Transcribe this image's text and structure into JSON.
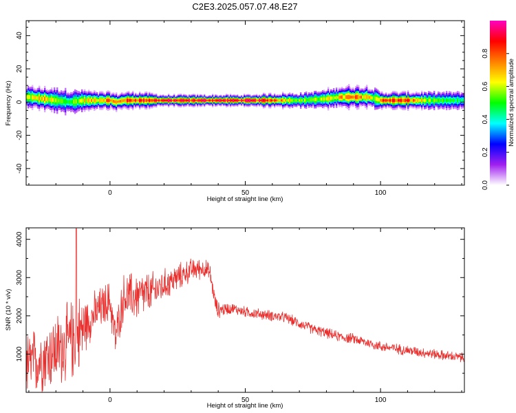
{
  "title": "C2E3.2025.057.07.48.E27",
  "chart_data": [
    {
      "type": "heatmap",
      "xlabel": "Height of straight line (km)",
      "ylabel": "Frequency (Hz)",
      "xlim": [
        -31,
        131
      ],
      "ylim": [
        -50,
        49
      ],
      "xticks": [
        0,
        50,
        100
      ],
      "yticks": [
        -40,
        -20,
        0,
        20,
        40
      ],
      "grid": false,
      "colorbar": {
        "label": "Normalized spectral amplitude",
        "range": [
          0,
          1
        ],
        "ticks": [
          "0.0",
          "0.2",
          "0.4",
          "0.6",
          "0.8"
        ],
        "colormap": [
          "#ffffff",
          "#a020f0",
          "#0000ff",
          "#00ffff",
          "#00ff00",
          "#ffff00",
          "#ff8000",
          "#ff0000",
          "#ff00c0"
        ]
      },
      "ridge": {
        "x": [
          -30,
          -25,
          -20,
          -15,
          -10,
          -5,
          0,
          2,
          5,
          10,
          20,
          30,
          40,
          50,
          60,
          70,
          80,
          85,
          90,
          95,
          98,
          100,
          105,
          110,
          120,
          130
        ],
        "freq": [
          3,
          2,
          1,
          0,
          1,
          1,
          1,
          0,
          1,
          1,
          1,
          1,
          1,
          1,
          1,
          1,
          2,
          3,
          3,
          3,
          2,
          1,
          1,
          1,
          1,
          1
        ],
        "amplitude": [
          0.6,
          0.7,
          0.55,
          0.5,
          0.65,
          0.7,
          0.8,
          0.7,
          0.8,
          0.85,
          0.9,
          0.9,
          0.92,
          0.9,
          0.85,
          0.55,
          0.6,
          0.7,
          0.75,
          0.7,
          0.6,
          0.8,
          0.85,
          0.8,
          0.5,
          0.45
        ],
        "halfwidth_hz": [
          4,
          4,
          5,
          5,
          4,
          3,
          3,
          3,
          3,
          3,
          2,
          2,
          2,
          2,
          2.5,
          3,
          3.5,
          4,
          4,
          4,
          4,
          3,
          3,
          3,
          3.5,
          3.5
        ]
      }
    },
    {
      "type": "line",
      "xlabel": "Height of straight line (km)",
      "ylabel": "SNR (10 * v/v)",
      "xlim": [
        -31,
        131
      ],
      "ylim": [
        0,
        4300
      ],
      "xticks": [
        0,
        50,
        100
      ],
      "yticks": [
        1000,
        2000,
        3000,
        4000
      ],
      "grid": false,
      "color": "#e8312f",
      "trend": {
        "x": [
          -31,
          -25,
          -20,
          -15,
          -12,
          -10,
          -5,
          0,
          2,
          5,
          10,
          15,
          20,
          25,
          30,
          35,
          37,
          39,
          40,
          45,
          50,
          55,
          60,
          65,
          70,
          75,
          80,
          85,
          90,
          95,
          100,
          105,
          110,
          115,
          120,
          125,
          131
        ],
        "y": [
          700,
          900,
          1100,
          1300,
          1500,
          1700,
          2100,
          2400,
          1400,
          2500,
          2500,
          2600,
          2800,
          3000,
          3200,
          3250,
          3100,
          2300,
          2150,
          2200,
          2100,
          2050,
          2000,
          1950,
          1800,
          1650,
          1550,
          1450,
          1400,
          1300,
          1200,
          1150,
          1100,
          1050,
          1000,
          950,
          900
        ]
      },
      "noise_amp": {
        "x": [
          -31,
          -20,
          -12,
          -8,
          0,
          10,
          20,
          30,
          38,
          45,
          131
        ],
        "y": [
          700,
          800,
          900,
          500,
          450,
          550,
          350,
          250,
          200,
          120,
          110
        ]
      },
      "peak": {
        "x": -12.5,
        "y": 4280
      }
    }
  ]
}
